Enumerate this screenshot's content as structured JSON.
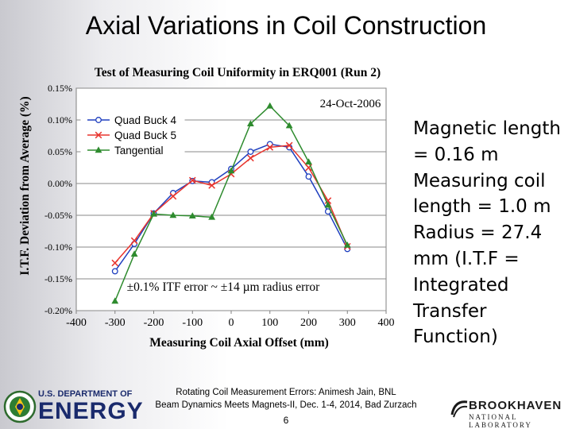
{
  "slide": {
    "title": "Axial Variations in Coil Construction",
    "bullet_text": "Magnetic length = 0.16 m Measuring coil length = 1.0 m Radius = 27.4 mm (I.T.F = Integrated Transfer Function)",
    "footer_line1": "Rotating Coil Measurement Errors: Animesh Jain, BNL",
    "footer_line2": "Beam Dynamics Meets Magnets-II, Dec. 1-4, 2014, Bad Zurzach",
    "page_number": "6",
    "doe_logo_text_1": "U.S. DEPARTMENT OF",
    "doe_logo_text_2": "ENERGY",
    "bnl_logo_text_1": "BROOKHAVEN",
    "bnl_logo_text_2": "NATIONAL LABORATORY"
  },
  "chart_data": {
    "type": "line",
    "title": "Test of Measuring Coil Uniformity in ERQ001 (Run 2)",
    "xlabel": "Measuring Coil Axial Offset (mm)",
    "ylabel": "I.T.F. Deviation from Average (%)",
    "date_annotation": "24-Oct-2006",
    "error_annotation": "±0.1% ITF error ~ ±14 µm radius error",
    "xlim": [
      -400,
      400
    ],
    "ylim": [
      -0.2,
      0.15
    ],
    "x_ticks": [
      -400,
      -300,
      -200,
      -100,
      0,
      100,
      200,
      300,
      400
    ],
    "x_tick_labels": [
      "-400",
      "-300",
      "-200",
      "-100",
      "0",
      "100",
      "200",
      "300",
      "400"
    ],
    "y_ticks": [
      0.15,
      0.1,
      0.05,
      0.0,
      -0.05,
      -0.1,
      -0.15,
      -0.2
    ],
    "y_tick_labels": [
      "0.15%",
      "0.10%",
      "0.05%",
      "0.00%",
      "-0.05%",
      "-0.10%",
      "-0.15%",
      "-0.20%"
    ],
    "grid": true,
    "legend_position": "top-left",
    "x": [
      -300,
      -250,
      -200,
      -150,
      -100,
      -50,
      0,
      50,
      100,
      150,
      200,
      250,
      300
    ],
    "series": [
      {
        "name": "Quad Buck 4",
        "color": "#1f3fbf",
        "marker": "circle",
        "values": [
          -0.138,
          -0.095,
          -0.047,
          -0.015,
          0.004,
          0.002,
          0.023,
          0.05,
          0.062,
          0.057,
          0.011,
          -0.044,
          -0.103
        ]
      },
      {
        "name": "Quad Buck 5",
        "color": "#e8352e",
        "marker": "x",
        "values": [
          -0.125,
          -0.09,
          -0.047,
          -0.02,
          0.005,
          -0.003,
          0.015,
          0.04,
          0.057,
          0.06,
          0.025,
          -0.027,
          -0.099
        ]
      },
      {
        "name": "Tangential",
        "color": "#2e8b2e",
        "marker": "triangle",
        "values": [
          -0.185,
          -0.111,
          -0.048,
          -0.05,
          -0.051,
          -0.053,
          0.02,
          0.094,
          0.122,
          0.091,
          0.034,
          -0.034,
          -0.097
        ]
      }
    ]
  }
}
